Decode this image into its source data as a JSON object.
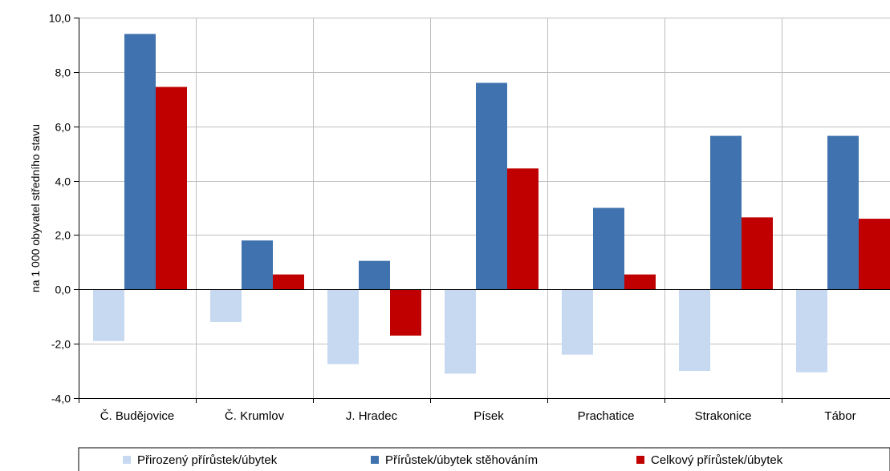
{
  "chart_data": {
    "type": "bar",
    "title": "",
    "xlabel": "",
    "ylabel": "na 1 000 obyvatel středního stavu",
    "ylim": [
      -4,
      10
    ],
    "yticks": [
      -4,
      -2,
      0,
      2,
      4,
      6,
      8,
      10
    ],
    "ytick_labels": [
      "-4,0",
      "-2,0",
      "0,0",
      "2,0",
      "4,0",
      "6,0",
      "8,0",
      "10,0"
    ],
    "grid": true,
    "legend_position": "bottom",
    "categories": [
      "Č. Budějovice",
      "Č. Krumlov",
      "J. Hradec",
      "Písek",
      "Prachatice",
      "Strakonice",
      "Tábor"
    ],
    "series": [
      {
        "name": "Přirozený přírůstek/úbytek",
        "color": "#c6d9f1",
        "values": [
          -1.9,
          -1.2,
          -2.75,
          -3.1,
          -2.4,
          -3.0,
          -3.05
        ]
      },
      {
        "name": "Přírůstek/úbytek stěhováním",
        "color": "#3f72ae",
        "values": [
          9.4,
          1.8,
          1.05,
          7.6,
          3.0,
          5.65,
          5.65
        ]
      },
      {
        "name": "Celkový přírůstek/úbytek",
        "color": "#c00000",
        "values": [
          7.45,
          0.55,
          -1.7,
          4.45,
          0.55,
          2.65,
          2.6
        ]
      }
    ]
  }
}
